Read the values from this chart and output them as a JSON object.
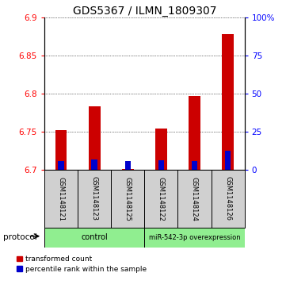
{
  "title": "GDS5367 / ILMN_1809307",
  "samples": [
    "GSM1148121",
    "GSM1148123",
    "GSM1148125",
    "GSM1148122",
    "GSM1148124",
    "GSM1148126"
  ],
  "red_values": [
    6.752,
    6.783,
    6.701,
    6.754,
    6.797,
    6.878
  ],
  "blue_values": [
    6.712,
    6.714,
    6.712,
    6.713,
    6.712,
    6.725
  ],
  "baseline": 6.7,
  "ylim": [
    6.7,
    6.9
  ],
  "yticks_left": [
    6.7,
    6.75,
    6.8,
    6.85,
    6.9
  ],
  "yticks_right": [
    0,
    25,
    50,
    75,
    100
  ],
  "bar_color": "#cc0000",
  "blue_color": "#0000cc",
  "bar_width": 0.35,
  "label_area_color": "#d0d0d0",
  "title_fontsize": 10,
  "tick_fontsize": 7.5,
  "legend_red": "transformed count",
  "legend_blue": "percentile rank within the sample",
  "protocol_label": "protocol",
  "green_color": "#90EE90"
}
